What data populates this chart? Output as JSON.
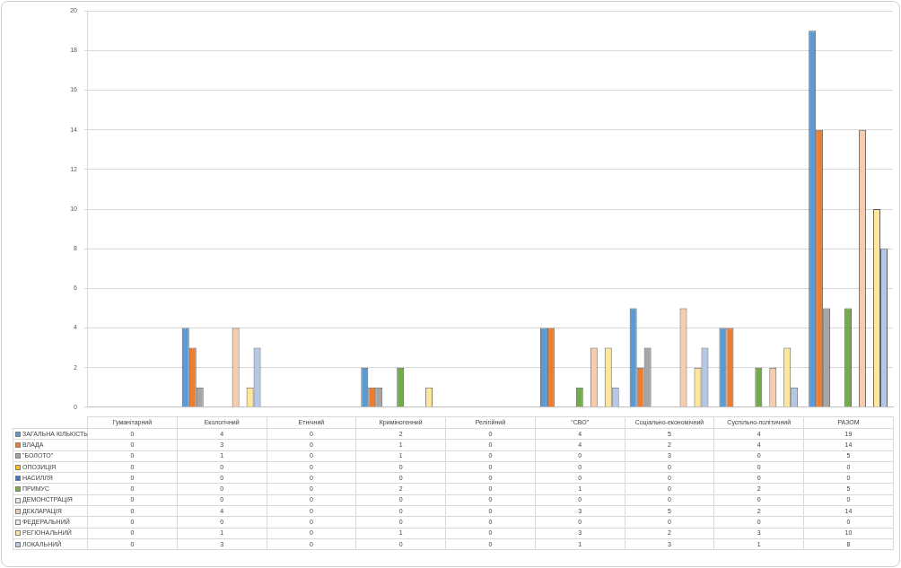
{
  "chart_data": {
    "type": "bar",
    "categories": [
      "Гуманітарний",
      "Екологічний",
      "Етнічний",
      "Криміногенний",
      "Релігійний",
      "\"СВО\"",
      "Соціально-економічний",
      "Суспільно-політичний",
      "РАЗОМ"
    ],
    "series": [
      {
        "name": "ЗАГАЛЬНА КІЛЬКІСТЬ",
        "color": "#5b9bd5",
        "values": [
          0,
          4,
          0,
          2,
          0,
          4,
          5,
          4,
          19
        ]
      },
      {
        "name": "ВЛАДА",
        "color": "#ed7d31",
        "values": [
          0,
          3,
          0,
          1,
          0,
          4,
          2,
          4,
          14
        ]
      },
      {
        "name": "\"БОЛОТО\"",
        "color": "#a5a5a5",
        "values": [
          0,
          1,
          0,
          1,
          0,
          0,
          3,
          0,
          5
        ]
      },
      {
        "name": "ОПОЗИЦІЯ",
        "color": "#ffc000",
        "values": [
          0,
          0,
          0,
          0,
          0,
          0,
          0,
          0,
          0
        ]
      },
      {
        "name": "НАСИЛЛЯ",
        "color": "#4472c4",
        "values": [
          0,
          0,
          0,
          0,
          0,
          0,
          0,
          0,
          0
        ]
      },
      {
        "name": "ПРИМУС",
        "color": "#70ad47",
        "values": [
          0,
          0,
          0,
          2,
          0,
          1,
          0,
          2,
          5
        ]
      },
      {
        "name": "ДЕМОНСТРАЦІЯ",
        "color": "#deebf7",
        "values": [
          0,
          0,
          0,
          0,
          0,
          0,
          0,
          0,
          0
        ]
      },
      {
        "name": "ДЕКЛАРАЦІЯ",
        "color": "#f8cbad",
        "values": [
          0,
          4,
          0,
          0,
          0,
          3,
          5,
          2,
          14
        ]
      },
      {
        "name": "ФЕДЕРАЛЬНИЙ",
        "color": "#ededed",
        "values": [
          0,
          0,
          0,
          0,
          0,
          0,
          0,
          0,
          0
        ]
      },
      {
        "name": "РЕГІОНАЛЬНИЙ",
        "color": "#ffe699",
        "values": [
          0,
          1,
          0,
          1,
          0,
          3,
          2,
          3,
          10
        ]
      },
      {
        "name": "ЛОКАЛЬНИЙ",
        "color": "#b4c7e7",
        "values": [
          0,
          3,
          0,
          0,
          0,
          1,
          3,
          1,
          8
        ]
      }
    ],
    "ylim": [
      0,
      20
    ],
    "yticks": [
      0,
      2,
      4,
      6,
      8,
      10,
      12,
      14,
      16,
      18,
      20
    ],
    "grid": "y",
    "legend": "bottom",
    "data_labels": true
  }
}
